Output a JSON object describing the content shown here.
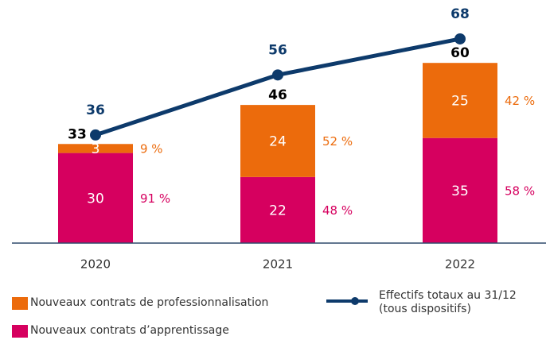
{
  "chart_data": {
    "type": "stacked-bar-line",
    "categories": [
      "2020",
      "2021",
      "2022"
    ],
    "series": [
      {
        "name": "Nouveaux contrats d’apprentissage",
        "color": "#d6005f",
        "values": [
          30,
          22,
          35
        ],
        "shares": [
          91,
          48,
          58
        ],
        "share_labels": [
          "91 %",
          "48 %",
          "58 %"
        ]
      },
      {
        "name": "Nouveaux contrats de professionnalisation",
        "color": "#ec6b0c",
        "values": [
          3,
          24,
          25
        ],
        "shares": [
          9,
          52,
          42
        ],
        "share_labels": [
          "9 %",
          "52 %",
          "42 %"
        ]
      },
      {
        "name": "Effectifs totaux au 31/12 (tous dispositifs)",
        "color": "#0d3a6b",
        "type": "line",
        "values": [
          36,
          56,
          68
        ]
      }
    ],
    "totals": [
      33,
      46,
      60
    ]
  }
}
